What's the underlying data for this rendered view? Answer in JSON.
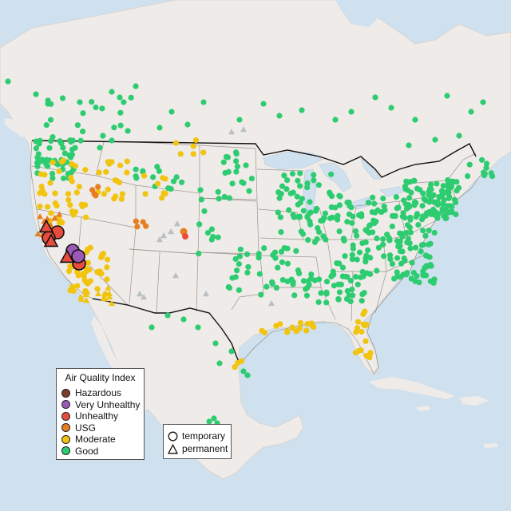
{
  "legend": {
    "title": "Air Quality Index",
    "categories": [
      {
        "label": "Hazardous",
        "color": "#7e3b2e"
      },
      {
        "label": "Very Unhealthy",
        "color": "#9b59b6"
      },
      {
        "label": "Unhealthy",
        "color": "#e74c3c"
      },
      {
        "label": "USG",
        "color": "#e67e22"
      },
      {
        "label": "Moderate",
        "color": "#f1c40f"
      },
      {
        "label": "Good",
        "color": "#2ecc71"
      }
    ],
    "no_data_color": "#b9c0c4"
  },
  "shape_legend": {
    "temporary_label": "temporary",
    "permanent_label": "permanent"
  },
  "map_colors": {
    "water": "#cfe0ee",
    "land": "#efebe8",
    "border": "#111111"
  },
  "monitors": [
    {
      "category": "Good",
      "locations": "nationwide (majority of monitors, eastern US and Pacific Northwest)"
    },
    {
      "category": "Moderate",
      "locations": "California, Nevada, Idaho, Oregon, Gulf Coast, Florida"
    },
    {
      "category": "USG",
      "locations": "northern California, Idaho, Colorado"
    },
    {
      "category": "Unhealthy",
      "locations": "northern and central California"
    },
    {
      "category": "Very Unhealthy",
      "locations": "central California"
    }
  ]
}
